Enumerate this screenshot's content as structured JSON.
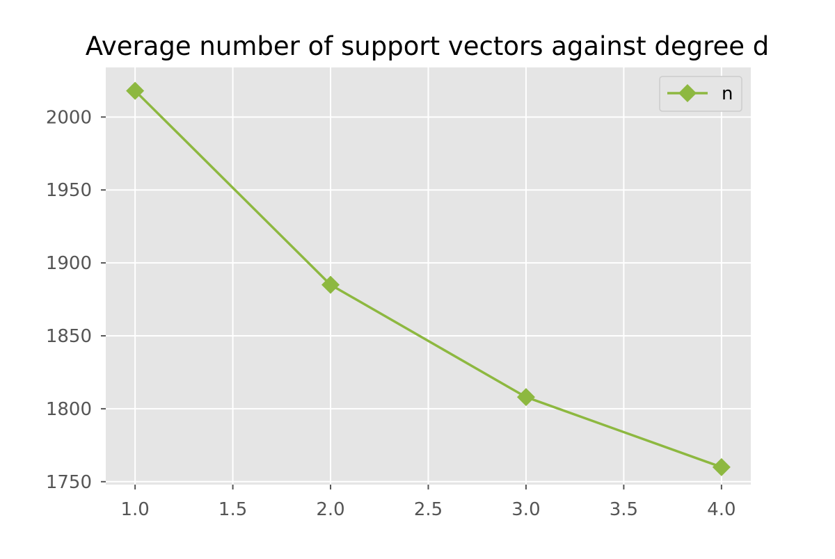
{
  "chart_data": {
    "type": "line",
    "title": "Average number of support vectors against degree d",
    "xlabel": "",
    "ylabel": "",
    "x": [
      1.0,
      2.0,
      3.0,
      4.0
    ],
    "xlim": [
      0.85,
      4.15
    ],
    "ylim": [
      1748,
      2034
    ],
    "x_ticks": [
      1.0,
      1.5,
      2.0,
      2.5,
      3.0,
      3.5,
      4.0
    ],
    "x_tick_labels": [
      "1.0",
      "1.5",
      "2.0",
      "2.5",
      "3.0",
      "3.5",
      "4.0"
    ],
    "y_ticks": [
      1750,
      1800,
      1850,
      1900,
      1950,
      2000
    ],
    "y_tick_labels": [
      "1750",
      "1800",
      "1850",
      "1900",
      "1950",
      "2000"
    ],
    "series": [
      {
        "name": "n",
        "values": [
          2018,
          1885,
          1808,
          1760
        ],
        "color": "#8db840",
        "marker": "diamond"
      }
    ],
    "grid": true,
    "legend_position": "top-right",
    "colors": {
      "plot_background": "#e5e5e5",
      "grid": "#ffffff",
      "tick_text": "#555555",
      "title_text": "#000000"
    }
  }
}
